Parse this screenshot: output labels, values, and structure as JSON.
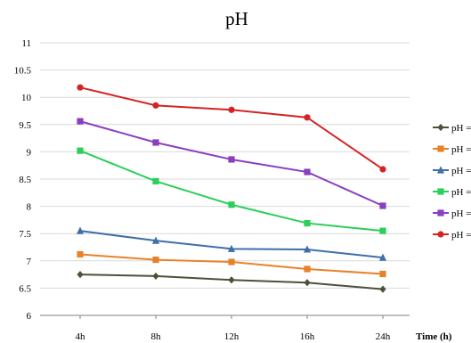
{
  "chart_data": {
    "type": "line",
    "title": "pH",
    "xlabel": "Time (h)",
    "ylabel": "",
    "categories": [
      "4h",
      "8h",
      "12h",
      "16h",
      "24h"
    ],
    "ylim": [
      6,
      11
    ],
    "yticks": [
      "6",
      "6.5",
      "7",
      "7.5",
      "8",
      "8.5",
      "9",
      "9.5",
      "10",
      "10.5",
      "11"
    ],
    "grid": true,
    "legend_position": "right",
    "series": [
      {
        "name": "pH =",
        "color": "#4f4f3a",
        "marker": "diamond",
        "values": [
          6.75,
          6.72,
          6.65,
          6.6,
          6.48
        ]
      },
      {
        "name": "pH =",
        "color": "#e8822a",
        "marker": "square",
        "values": [
          7.12,
          7.02,
          6.98,
          6.85,
          6.76
        ]
      },
      {
        "name": "pH =",
        "color": "#3f6fa8",
        "marker": "triangle",
        "values": [
          7.55,
          7.37,
          7.22,
          7.21,
          7.06
        ]
      },
      {
        "name": "pH =",
        "color": "#2bcf5a",
        "marker": "square",
        "values": [
          9.02,
          8.46,
          8.03,
          7.69,
          7.55
        ]
      },
      {
        "name": "pH =",
        "color": "#8a3fbf",
        "marker": "square",
        "values": [
          9.56,
          9.17,
          8.86,
          8.63,
          8.01
        ]
      },
      {
        "name": "pH =",
        "color": "#d42424",
        "marker": "circle",
        "values": [
          10.18,
          9.85,
          9.77,
          9.63,
          8.68
        ]
      }
    ]
  }
}
